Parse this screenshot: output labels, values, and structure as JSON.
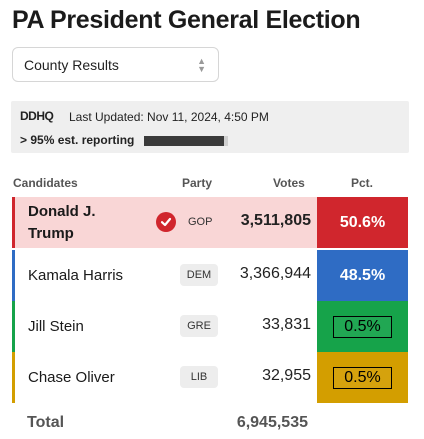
{
  "title": "PA President General Election",
  "view_select": {
    "value": "County Results"
  },
  "info": {
    "source": "DDHQ",
    "last_updated": "Last Updated: Nov 11, 2024, 4:50 PM",
    "reporting": "> 95% est. reporting",
    "reporting_fraction": 0.95
  },
  "columns": {
    "candidates": "Candidates",
    "party": "Party",
    "votes": "Votes",
    "pct": "Pct."
  },
  "candidates": [
    {
      "name": "Donald J. Trump",
      "party": "GOP",
      "votes": "3,511,805",
      "pct": "50.6%",
      "color": "#d0262d",
      "winner": true
    },
    {
      "name": "Kamala Harris",
      "party": "DEM",
      "votes": "3,366,944",
      "pct": "48.5%",
      "color": "#2f6cc4",
      "winner": false
    },
    {
      "name": "Jill Stein",
      "party": "GRE",
      "votes": "33,831",
      "pct": "0.5%",
      "color": "#16a34a",
      "winner": false
    },
    {
      "name": "Chase Oliver",
      "party": "LIB",
      "votes": "32,955",
      "pct": "0.5%",
      "color": "#d39e00",
      "winner": false
    }
  ],
  "total": {
    "label": "Total",
    "votes": "6,945,535"
  }
}
